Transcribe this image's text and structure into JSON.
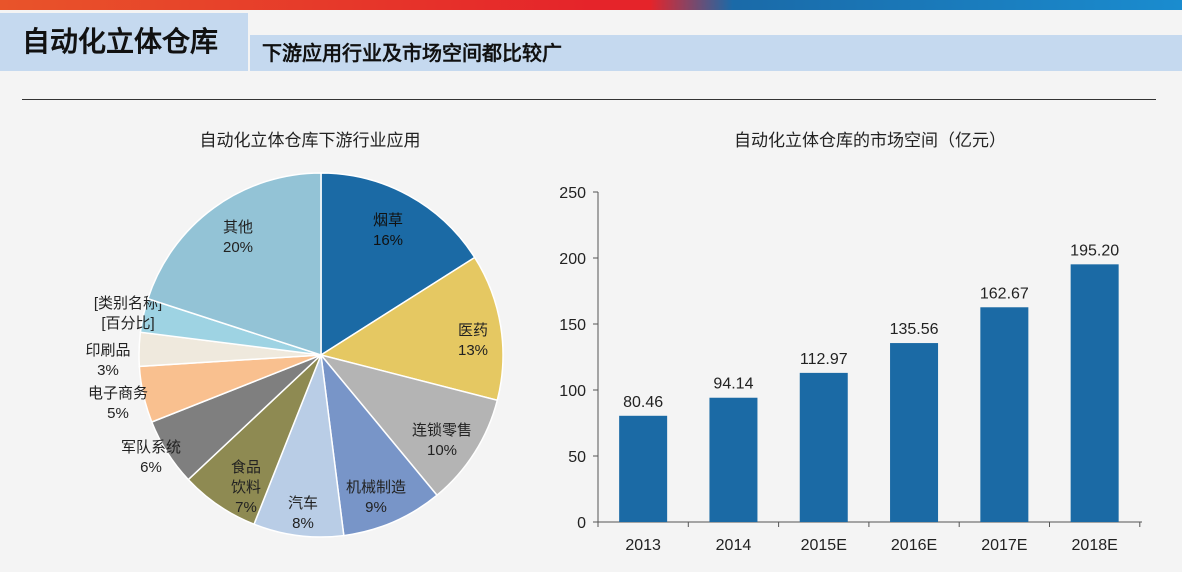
{
  "header": {
    "title": "自动化立体仓库",
    "subtitle": "下游应用行业及市场空间都比较广"
  },
  "chart_data": [
    {
      "type": "pie",
      "title": "自动化立体仓库下游行业应用",
      "slices": [
        {
          "label": "烟草",
          "value": 16,
          "pct": "16%",
          "color": "#1b6aa5"
        },
        {
          "label": "医药",
          "value": 13,
          "pct": "13%",
          "color": "#e5c862"
        },
        {
          "label": "连锁零售",
          "value": 10,
          "pct": "10%",
          "color": "#b4b4b4"
        },
        {
          "label": "机械制造",
          "value": 9,
          "pct": "9%",
          "color": "#7895c8"
        },
        {
          "label": "汽车",
          "value": 8,
          "pct": "8%",
          "color": "#b9cde6"
        },
        {
          "label": "食品饮料",
          "value": 7,
          "pct": "7%",
          "color": "#8e8a52"
        },
        {
          "label": "军队系统",
          "value": 6,
          "pct": "6%",
          "color": "#7f7f7f"
        },
        {
          "label": "电子商务",
          "value": 5,
          "pct": "5%",
          "color": "#f9c08f"
        },
        {
          "label": "印刷品",
          "value": 3,
          "pct": "3%",
          "color": "#efe9dd"
        },
        {
          "label": "[类别名称]",
          "value": 3,
          "pct": "[百分比]",
          "color": "#9ed3e3"
        },
        {
          "label": "其他",
          "value": 20,
          "pct": "20%",
          "color": "#93c3d6"
        }
      ]
    },
    {
      "type": "bar",
      "title": "自动化立体仓库的市场空间（亿元）",
      "categories": [
        "2013",
        "2014",
        "2015E",
        "2016E",
        "2017E",
        "2018E"
      ],
      "values": [
        80.46,
        94.14,
        112.97,
        135.56,
        162.67,
        195.2
      ],
      "labels": [
        "80.46",
        "94.14",
        "112.97",
        "135.56",
        "162.67",
        "195.20"
      ],
      "ylim": [
        0,
        250
      ],
      "yticks": [
        "0",
        "50",
        "100",
        "150",
        "200",
        "250"
      ],
      "color": "#1b6aa5"
    }
  ]
}
